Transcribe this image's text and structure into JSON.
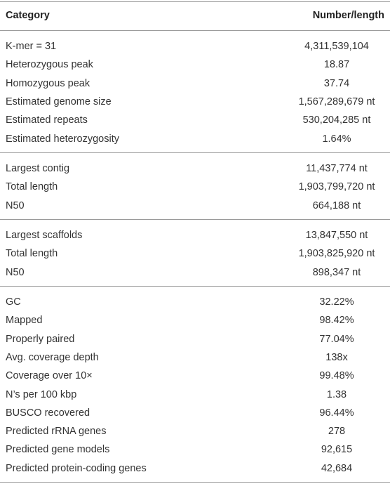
{
  "table": {
    "header": [
      "Category",
      "Number/length"
    ],
    "groups": [
      [
        [
          "K-mer = 31",
          "4,311,539,104"
        ],
        [
          "Heterozygous peak",
          "18.87"
        ],
        [
          "Homozygous peak",
          "37.74"
        ],
        [
          "Estimated genome size",
          "1,567,289,679 nt"
        ],
        [
          "Estimated repeats",
          "530,204,285 nt"
        ],
        [
          "Estimated heterozygosity",
          "1.64%"
        ]
      ],
      [
        [
          "Largest contig",
          "11,437,774 nt"
        ],
        [
          "Total length",
          "1,903,799,720 nt"
        ],
        [
          "N50",
          "664,188 nt"
        ]
      ],
      [
        [
          "Largest scaffolds",
          "13,847,550 nt"
        ],
        [
          "Total length",
          "1,903,825,920 nt"
        ],
        [
          "N50",
          "898,347 nt"
        ]
      ],
      [
        [
          "GC",
          "32.22%"
        ],
        [
          "Mapped",
          "98.42%"
        ],
        [
          "Properly paired",
          "77.04%"
        ],
        [
          "Avg. coverage depth",
          "138x"
        ],
        [
          "Coverage over 10×",
          "99.48%"
        ],
        [
          "N’s per 100 kbp",
          "1.38"
        ],
        [
          "BUSCO recovered",
          "96.44%"
        ],
        [
          "Predicted rRNA genes",
          "278"
        ],
        [
          "Predicted gene models",
          "92,615"
        ],
        [
          "Predicted protein-coding genes",
          "42,684"
        ]
      ]
    ]
  }
}
